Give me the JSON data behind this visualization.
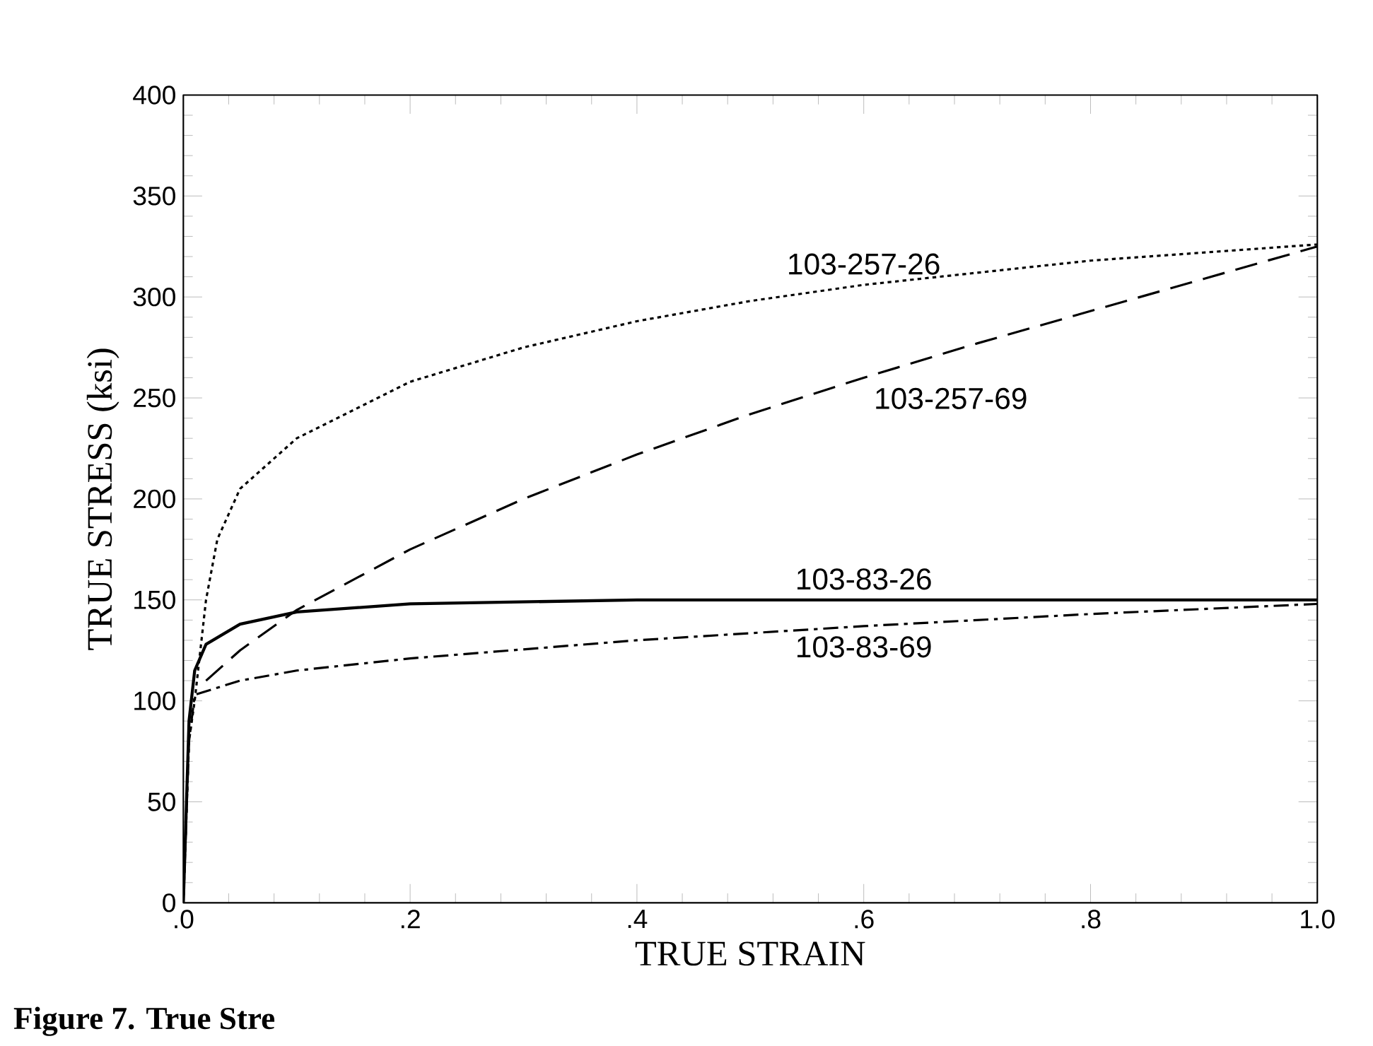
{
  "chart_data": {
    "type": "line",
    "xlabel": "TRUE STRAIN",
    "ylabel": "TRUE STRESS (ksi)",
    "annotations": [
      "Figure 7. True Stre"
    ],
    "xlim": [
      0,
      1.0
    ],
    "ylim": [
      0,
      400
    ],
    "xticks": [
      {
        "value": 0,
        "label": ".0"
      },
      {
        "value": 0.2,
        "label": ".2"
      },
      {
        "value": 0.4,
        "label": ".4"
      },
      {
        "value": 0.6,
        "label": ".6"
      },
      {
        "value": 0.8,
        "label": ".8"
      },
      {
        "value": 1.0,
        "label": "1.0"
      }
    ],
    "yticks": [
      0,
      50,
      100,
      150,
      200,
      250,
      300,
      350,
      400
    ],
    "grid": false,
    "legend": false,
    "marker": "none",
    "series": [
      {
        "name": "103-257-26",
        "color": "#000000",
        "line_style": "dotted",
        "x": [
          0,
          0.005,
          0.01,
          0.02,
          0.03,
          0.05,
          0.1,
          0.2,
          0.3,
          0.4,
          0.5,
          0.6,
          0.7,
          0.8,
          0.9,
          1.0
        ],
        "values": [
          0,
          80,
          100,
          150,
          180,
          205,
          230,
          258,
          275,
          288,
          298,
          306,
          312,
          318,
          322,
          326
        ]
      },
      {
        "name": "103-257-69",
        "color": "#000000",
        "line_style": "dashed",
        "x": [
          0.02,
          0.05,
          0.1,
          0.2,
          0.3,
          0.4,
          0.5,
          0.6,
          0.7,
          0.8,
          0.9,
          1.0
        ],
        "values": [
          110,
          125,
          145,
          175,
          200,
          222,
          242,
          260,
          277,
          293,
          309,
          325
        ]
      },
      {
        "name": "103-83-26",
        "color": "#000000",
        "line_style": "solid",
        "x": [
          0,
          0.005,
          0.01,
          0.02,
          0.05,
          0.1,
          0.2,
          0.4,
          0.6,
          0.8,
          1.0
        ],
        "values": [
          0,
          90,
          115,
          128,
          138,
          144,
          148,
          150,
          150,
          150,
          150
        ]
      },
      {
        "name": "103-83-69",
        "color": "#000000",
        "line_style": "dashdot",
        "x": [
          0,
          0.005,
          0.01,
          0.05,
          0.1,
          0.2,
          0.4,
          0.6,
          0.8,
          1.0
        ],
        "values": [
          0,
          80,
          103,
          110,
          115,
          121,
          130,
          137,
          143,
          148
        ]
      }
    ]
  }
}
